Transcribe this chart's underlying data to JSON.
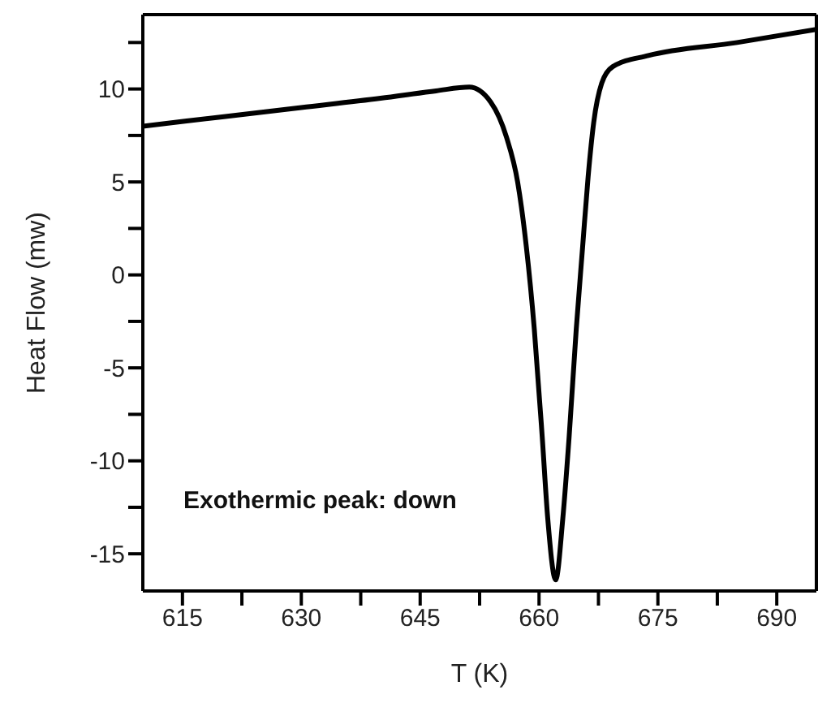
{
  "chart_data": {
    "type": "line",
    "xlabel": "T (K)",
    "ylabel": "Heat Flow (mw)",
    "annotations": [
      "Exothermic peak: down"
    ],
    "xlim": [
      610,
      695
    ],
    "xticks": [
      615,
      {
        "value": 622.5,
        "label": null
      },
      630,
      {
        "value": 637.5,
        "label": null
      },
      645,
      {
        "value": 652.5,
        "label": null
      },
      660,
      {
        "value": 667.5,
        "label": null
      },
      675,
      {
        "value": 682.5,
        "label": null
      },
      690
    ],
    "ylim": [
      -17,
      14
    ],
    "yticks": [
      -15,
      {
        "value": -12.5,
        "label": null
      },
      -10,
      {
        "value": -7.5,
        "label": null
      },
      -5,
      {
        "value": -2.5,
        "label": null
      },
      0,
      {
        "value": 2.5,
        "label": null
      },
      5,
      {
        "value": 7.5,
        "label": null
      },
      10,
      {
        "value": 12.5,
        "label": null
      }
    ],
    "marker": "none",
    "line_style": "solid",
    "series": [
      {
        "color": "#000000",
        "x": [
          610,
          620,
          630,
          640,
          647,
          651.2,
          653.9,
          655.9,
          657.3,
          658.4,
          659.4,
          660.4,
          661.1,
          662.1,
          663.0,
          663.8,
          664.7,
          665.5,
          666.2,
          666.9,
          667.9,
          669.3,
          673.8,
          685,
          695
        ],
        "values": [
          8.0,
          8.5,
          9.0,
          9.5,
          9.9,
          10.1,
          9.3,
          7.4,
          5.0,
          1.5,
          -2.9,
          -8.7,
          -13.1,
          -16.4,
          -13.1,
          -8.7,
          -2.9,
          1.5,
          5.3,
          8.2,
          10.3,
          11.2,
          11.8,
          12.5,
          13.2
        ]
      }
    ]
  }
}
